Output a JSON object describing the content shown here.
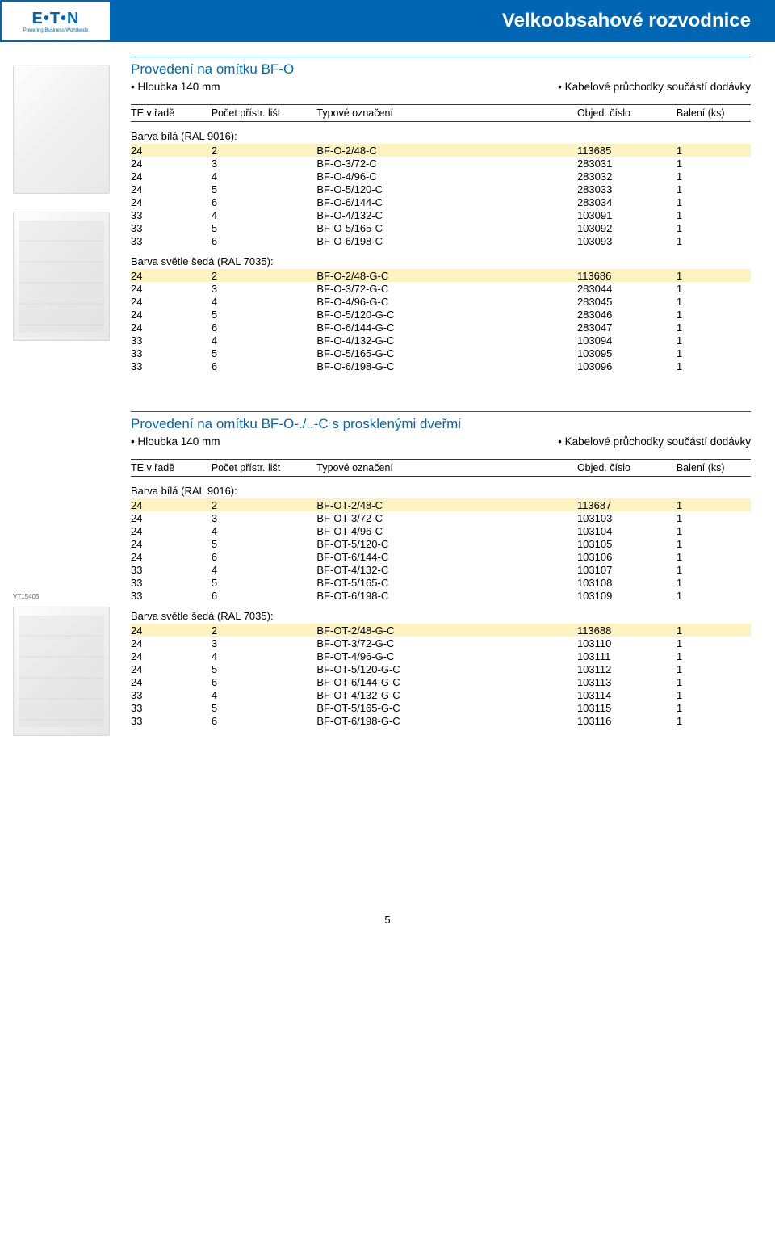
{
  "header": {
    "logo_text": "E•T•N",
    "logo_sub": "Powering Business Worldwide",
    "title": "Velkoobsahové rozvodnice"
  },
  "sections": [
    {
      "title": "Provedení na omítku BF-O",
      "bullets": [
        "Hloubka 140 mm",
        "Kabelové průchodky součástí dodávky"
      ],
      "columns": [
        "TE v řadě",
        "Počet přístr. lišt",
        "Typové označení",
        "Objed. číslo",
        "Balení (ks)"
      ],
      "groups": [
        {
          "label": "Barva bílá (RAL 9016):",
          "rows": [
            [
              "24",
              "2",
              "BF-O-2/48-C",
              "113685",
              "1",
              true
            ],
            [
              "24",
              "3",
              "BF-O-3/72-C",
              "283031",
              "1",
              false
            ],
            [
              "24",
              "4",
              "BF-O-4/96-C",
              "283032",
              "1",
              false
            ],
            [
              "24",
              "5",
              "BF-O-5/120-C",
              "283033",
              "1",
              false
            ],
            [
              "24",
              "6",
              "BF-O-6/144-C",
              "283034",
              "1",
              false
            ],
            [
              "33",
              "4",
              "BF-O-4/132-C",
              "103091",
              "1",
              false
            ],
            [
              "33",
              "5",
              "BF-O-5/165-C",
              "103092",
              "1",
              false
            ],
            [
              "33",
              "6",
              "BF-O-6/198-C",
              "103093",
              "1",
              false
            ]
          ]
        },
        {
          "label": "Barva světle šedá (RAL 7035):",
          "rows": [
            [
              "24",
              "2",
              "BF-O-2/48-G-C",
              "113686",
              "1",
              true
            ],
            [
              "24",
              "3",
              "BF-O-3/72-G-C",
              "283044",
              "1",
              false
            ],
            [
              "24",
              "4",
              "BF-O-4/96-G-C",
              "283045",
              "1",
              false
            ],
            [
              "24",
              "5",
              "BF-O-5/120-G-C",
              "283046",
              "1",
              false
            ],
            [
              "24",
              "6",
              "BF-O-6/144-G-C",
              "283047",
              "1",
              false
            ],
            [
              "33",
              "4",
              "BF-O-4/132-G-C",
              "103094",
              "1",
              false
            ],
            [
              "33",
              "5",
              "BF-O-5/165-G-C",
              "103095",
              "1",
              false
            ],
            [
              "33",
              "6",
              "BF-O-6/198-G-C",
              "103096",
              "1",
              false
            ]
          ]
        }
      ]
    },
    {
      "title": "Provedení na omítku BF-O-./..-C s prosklenými dveřmi",
      "bullets": [
        "Hloubka 140 mm",
        "Kabelové průchodky součástí dodávky"
      ],
      "columns": [
        "TE v řadě",
        "Počet přístr. lišt",
        "Typové označení",
        "Objed. číslo",
        "Balení (ks)"
      ],
      "groups": [
        {
          "label": "Barva bílá (RAL 9016):",
          "rows": [
            [
              "24",
              "2",
              "BF-OT-2/48-C",
              "113687",
              "1",
              true
            ],
            [
              "24",
              "3",
              "BF-OT-3/72-C",
              "103103",
              "1",
              false
            ],
            [
              "24",
              "4",
              "BF-OT-4/96-C",
              "103104",
              "1",
              false
            ],
            [
              "24",
              "5",
              "BF-OT-5/120-C",
              "103105",
              "1",
              false
            ],
            [
              "24",
              "6",
              "BF-OT-6/144-C",
              "103106",
              "1",
              false
            ],
            [
              "33",
              "4",
              "BF-OT-4/132-C",
              "103107",
              "1",
              false
            ],
            [
              "33",
              "5",
              "BF-OT-5/165-C",
              "103108",
              "1",
              false
            ],
            [
              "33",
              "6",
              "BF-OT-6/198-C",
              "103109",
              "1",
              false
            ]
          ]
        },
        {
          "label": "Barva světle šedá (RAL 7035):",
          "rows": [
            [
              "24",
              "2",
              "BF-OT-2/48-G-C",
              "113688",
              "1",
              true
            ],
            [
              "24",
              "3",
              "BF-OT-3/72-G-C",
              "103110",
              "1",
              false
            ],
            [
              "24",
              "4",
              "BF-OT-4/96-G-C",
              "103111",
              "1",
              false
            ],
            [
              "24",
              "5",
              "BF-OT-5/120-G-C",
              "103112",
              "1",
              false
            ],
            [
              "24",
              "6",
              "BF-OT-6/144-G-C",
              "103113",
              "1",
              false
            ],
            [
              "33",
              "4",
              "BF-OT-4/132-G-C",
              "103114",
              "1",
              false
            ],
            [
              "33",
              "5",
              "BF-OT-5/165-G-C",
              "103115",
              "1",
              false
            ],
            [
              "33",
              "6",
              "BF-OT-6/198-G-C",
              "103116",
              "1",
              false
            ]
          ]
        }
      ]
    }
  ],
  "image_label2": "VT15405",
  "page_number": "5",
  "colors": {
    "brand_blue": "#0066b3",
    "highlight": "#fdf3c1",
    "text": "#000000"
  }
}
